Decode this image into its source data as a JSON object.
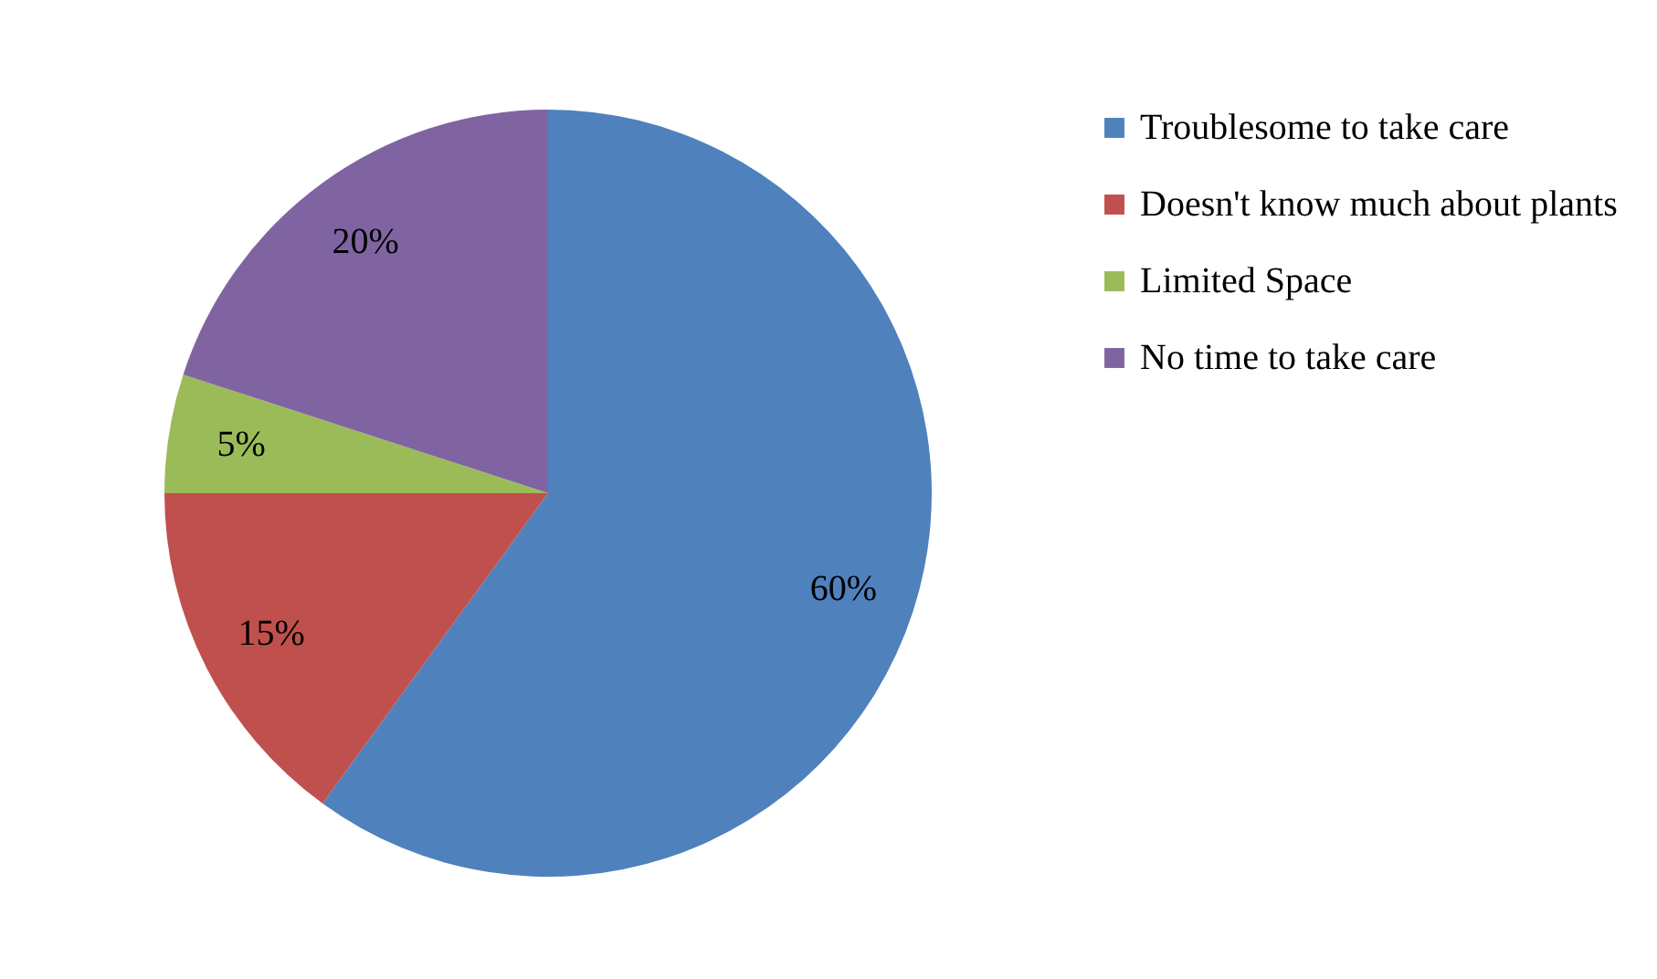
{
  "chart_data": {
    "type": "pie",
    "categories": [
      "Troublesome to take care",
      "Doesn't know much about plants",
      "Limited Space",
      "No time to take care"
    ],
    "values": [
      60,
      15,
      5,
      20
    ],
    "colors": [
      "#4f81bd",
      "#c0504d",
      "#9bbb59",
      "#8064a2"
    ],
    "value_labels": [
      "60%",
      "15%",
      "5%",
      "20%"
    ],
    "legend": "right"
  }
}
